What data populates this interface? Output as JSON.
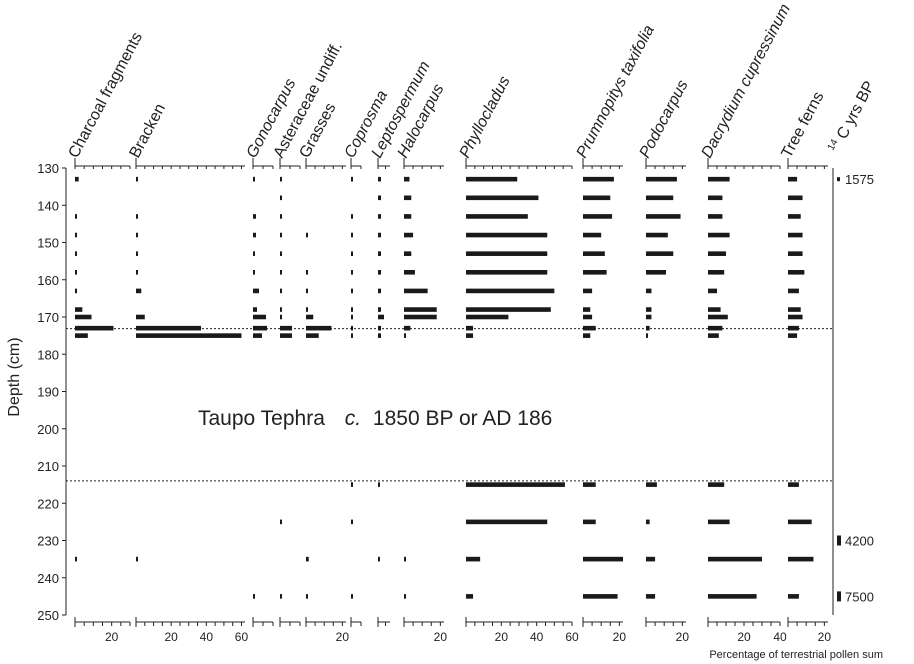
{
  "chart_data": {
    "type": "bar",
    "orientation": "horizontal",
    "ylabel": "Depth (cm)",
    "xlabel": "Percentage of terrestrial pollen sum",
    "ylim": [
      130,
      250
    ],
    "yticks": [
      130,
      140,
      150,
      160,
      170,
      180,
      190,
      200,
      210,
      220,
      230,
      240,
      250
    ],
    "right_axis_title": "C yrs BP",
    "right_axis_superscript": "14",
    "dates": [
      {
        "depth": 133,
        "label": "1575"
      },
      {
        "depth": 230,
        "label": "4200"
      },
      {
        "depth": 245,
        "label": "7500"
      }
    ],
    "tephra": {
      "top_depth": 173,
      "bottom_depth": 214,
      "label": "Taupo Tephra",
      "label_italic": "c.",
      "label_rest": "1850 BP or AD 186"
    },
    "panels": [
      {
        "name": "Charcoal fragments",
        "italic": false,
        "xmax": 30,
        "tick_labels": [
          20
        ],
        "values": [
          [
            133,
            2
          ],
          [
            143,
            0.5
          ],
          [
            148,
            0.5
          ],
          [
            153,
            1
          ],
          [
            158,
            1
          ],
          [
            163,
            1
          ],
          [
            168,
            4
          ],
          [
            170,
            9
          ],
          [
            173,
            21
          ],
          [
            175,
            7
          ],
          [
            235,
            1
          ]
        ]
      },
      {
        "name": "Bracken",
        "italic": false,
        "xmax": 62,
        "tick_labels": [
          20,
          40,
          60
        ],
        "values": [
          [
            133,
            0.5
          ],
          [
            143,
            1
          ],
          [
            148,
            0.5
          ],
          [
            153,
            0.5
          ],
          [
            158,
            0.5
          ],
          [
            163,
            3
          ],
          [
            170,
            5
          ],
          [
            173,
            37
          ],
          [
            175,
            60
          ],
          [
            235,
            0.5
          ]
        ]
      },
      {
        "name": "Gonocarpus",
        "italic": true,
        "xmax": 10,
        "tick_labels": [],
        "values": [
          [
            133,
            1
          ],
          [
            143,
            1.5
          ],
          [
            148,
            1.5
          ],
          [
            153,
            1
          ],
          [
            158,
            1
          ],
          [
            163,
            3
          ],
          [
            168,
            2
          ],
          [
            170,
            6.5
          ],
          [
            173,
            7
          ],
          [
            175,
            4.5
          ],
          [
            245,
            0.5
          ]
        ]
      },
      {
        "name": "Asteraceae undiff.",
        "italic": false,
        "xmax": 10,
        "tick_labels": [],
        "values": [
          [
            133,
            0.5
          ],
          [
            138,
            0.5
          ],
          [
            143,
            0.5
          ],
          [
            148,
            0.5
          ],
          [
            153,
            0.5
          ],
          [
            158,
            0.5
          ],
          [
            163,
            0.5
          ],
          [
            168,
            0.5
          ],
          [
            170,
            1
          ],
          [
            173,
            6
          ],
          [
            175,
            6
          ],
          [
            225,
            0.5
          ],
          [
            245,
            1
          ]
        ]
      },
      {
        "name": "Grasses",
        "italic": false,
        "xmax": 22,
        "tick_labels": [
          20
        ],
        "values": [
          [
            148,
            0.5
          ],
          [
            158,
            1
          ],
          [
            163,
            1
          ],
          [
            168,
            1
          ],
          [
            170,
            4
          ],
          [
            173,
            14
          ],
          [
            175,
            7
          ],
          [
            235,
            1.5
          ],
          [
            245,
            0.5
          ]
        ]
      },
      {
        "name": "Coprosma",
        "italic": true,
        "xmax": 5,
        "tick_labels": [],
        "values": [
          [
            133,
            0.5
          ],
          [
            143,
            0.5
          ],
          [
            148,
            0.5
          ],
          [
            153,
            0.5
          ],
          [
            158,
            0.5
          ],
          [
            163,
            1
          ],
          [
            168,
            0.5
          ],
          [
            170,
            1
          ],
          [
            173,
            1
          ],
          [
            175,
            1
          ],
          [
            215,
            0.5
          ],
          [
            225,
            1
          ],
          [
            245,
            1
          ]
        ]
      },
      {
        "name": "Leptospermum",
        "italic": true,
        "xmax": 8,
        "tick_labels": [],
        "values": [
          [
            133,
            2
          ],
          [
            138,
            2
          ],
          [
            143,
            2
          ],
          [
            148,
            2
          ],
          [
            153,
            2
          ],
          [
            158,
            2
          ],
          [
            163,
            2
          ],
          [
            168,
            2
          ],
          [
            170,
            4
          ],
          [
            173,
            2
          ],
          [
            175,
            2
          ],
          [
            215,
            1
          ],
          [
            235,
            0.5
          ]
        ]
      },
      {
        "name": "Halocarpus",
        "italic": true,
        "xmax": 22,
        "tick_labels": [
          20
        ],
        "values": [
          [
            133,
            3
          ],
          [
            138,
            4
          ],
          [
            143,
            4
          ],
          [
            148,
            5
          ],
          [
            153,
            4
          ],
          [
            158,
            6
          ],
          [
            163,
            13
          ],
          [
            168,
            18
          ],
          [
            170,
            18
          ],
          [
            173,
            3.5
          ],
          [
            175,
            1
          ],
          [
            235,
            1
          ],
          [
            245,
            1
          ]
        ]
      },
      {
        "name": "Phyllocladus",
        "italic": true,
        "xmax": 60,
        "tick_labels": [
          20,
          40,
          60
        ],
        "values": [
          [
            133,
            29
          ],
          [
            138,
            41
          ],
          [
            143,
            35
          ],
          [
            148,
            46
          ],
          [
            153,
            46
          ],
          [
            158,
            46
          ],
          [
            163,
            50
          ],
          [
            168,
            48
          ],
          [
            170,
            24
          ],
          [
            173,
            4
          ],
          [
            175,
            4
          ],
          [
            215,
            56
          ],
          [
            225,
            46
          ],
          [
            235,
            8
          ],
          [
            245,
            4
          ]
        ]
      },
      {
        "name": "Prumnopitys taxifolia",
        "italic": true,
        "xmax": 22,
        "tick_labels": [
          20
        ],
        "values": [
          [
            133,
            17
          ],
          [
            138,
            15
          ],
          [
            143,
            16
          ],
          [
            148,
            10
          ],
          [
            153,
            12
          ],
          [
            158,
            13
          ],
          [
            163,
            5
          ],
          [
            168,
            4
          ],
          [
            170,
            5
          ],
          [
            173,
            7
          ],
          [
            175,
            4
          ],
          [
            215,
            7
          ],
          [
            225,
            7
          ],
          [
            235,
            22
          ],
          [
            245,
            19
          ]
        ]
      },
      {
        "name": "Podocarpus",
        "italic": true,
        "xmax": 22,
        "tick_labels": [
          20
        ],
        "values": [
          [
            133,
            17
          ],
          [
            138,
            15
          ],
          [
            143,
            19
          ],
          [
            148,
            12
          ],
          [
            153,
            15
          ],
          [
            158,
            11
          ],
          [
            163,
            3
          ],
          [
            168,
            3
          ],
          [
            170,
            3
          ],
          [
            173,
            2
          ],
          [
            175,
            1
          ],
          [
            215,
            6
          ],
          [
            225,
            2
          ],
          [
            235,
            5
          ],
          [
            245,
            5
          ]
        ]
      },
      {
        "name": "Dacrydium cupressinum",
        "italic": true,
        "xmax": 40,
        "tick_labels": [
          20,
          40
        ],
        "values": [
          [
            133,
            12
          ],
          [
            138,
            8
          ],
          [
            143,
            8
          ],
          [
            148,
            12
          ],
          [
            153,
            10
          ],
          [
            158,
            9
          ],
          [
            163,
            5
          ],
          [
            168,
            7
          ],
          [
            170,
            11
          ],
          [
            173,
            8
          ],
          [
            175,
            6
          ],
          [
            215,
            9
          ],
          [
            225,
            12
          ],
          [
            235,
            30
          ],
          [
            245,
            27
          ]
        ]
      },
      {
        "name": "Tree ferns",
        "italic": false,
        "xmax": 22,
        "tick_labels": [
          20
        ],
        "values": [
          [
            133,
            5
          ],
          [
            138,
            8
          ],
          [
            143,
            7
          ],
          [
            148,
            8
          ],
          [
            153,
            8
          ],
          [
            158,
            9
          ],
          [
            163,
            6
          ],
          [
            168,
            7
          ],
          [
            170,
            8
          ],
          [
            173,
            6
          ],
          [
            175,
            5
          ],
          [
            215,
            6
          ],
          [
            225,
            13
          ],
          [
            235,
            14
          ],
          [
            245,
            6
          ]
        ]
      }
    ]
  }
}
